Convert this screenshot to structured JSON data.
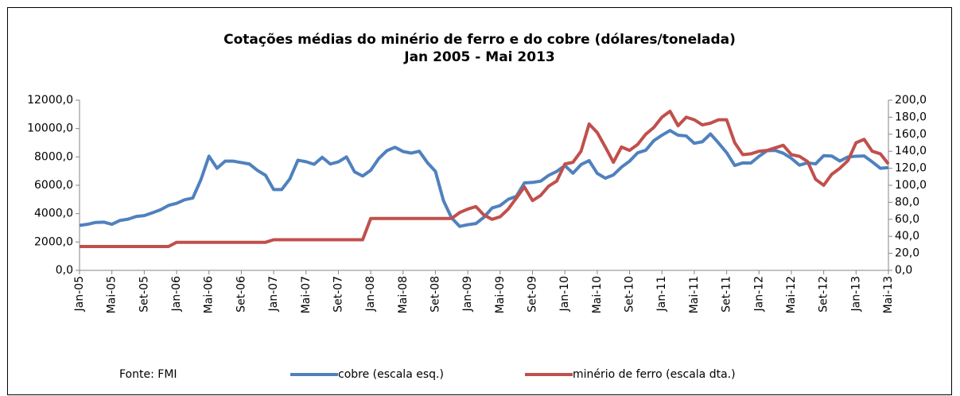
{
  "chart_data": {
    "type": "line",
    "title": "Cotações médias do minério de ferro e do cobre (dólares/tonelada)",
    "subtitle": "Jan 2005 - Mai 2013",
    "source": "Fonte: FMI",
    "categories": [
      "Jan-05",
      null,
      null,
      null,
      "Mai-05",
      null,
      null,
      null,
      "Set-05",
      null,
      null,
      null,
      "Jan-06",
      null,
      null,
      null,
      "Mai-06",
      null,
      null,
      null,
      "Set-06",
      null,
      null,
      null,
      "Jan-07",
      null,
      null,
      null,
      "Mai-07",
      null,
      null,
      null,
      "Set-07",
      null,
      null,
      null,
      "Jan-08",
      null,
      null,
      null,
      "Mai-08",
      null,
      null,
      null,
      "Set-08",
      null,
      null,
      null,
      "Jan-09",
      null,
      null,
      null,
      "Mai-09",
      null,
      null,
      null,
      "Set-09",
      null,
      null,
      null,
      "Jan-10",
      null,
      null,
      null,
      "Mai-10",
      null,
      null,
      null,
      "Set-10",
      null,
      null,
      null,
      "Jan-11",
      null,
      null,
      null,
      "Mai-11",
      null,
      null,
      null,
      "Set-11",
      null,
      null,
      null,
      "Jan-12",
      null,
      null,
      null,
      "Mai-12",
      null,
      null,
      null,
      "Set-12",
      null,
      null,
      null,
      "Jan-13",
      null,
      null,
      null,
      "Mai-13"
    ],
    "series": [
      {
        "name": "cobre (escala esq.)",
        "color": "#4f81bd",
        "values": [
          3170,
          3250,
          3380,
          3400,
          3250,
          3520,
          3610,
          3800,
          3860,
          4060,
          4270,
          4580,
          4730,
          4980,
          5100,
          6390,
          8050,
          7200,
          7700,
          7700,
          7600,
          7500,
          7050,
          6700,
          5700,
          5700,
          6450,
          7770,
          7660,
          7480,
          7970,
          7500,
          7650,
          8000,
          6950,
          6650,
          7060,
          7890,
          8440,
          8680,
          8380,
          8270,
          8400,
          7600,
          6980,
          4900,
          3700,
          3100,
          3220,
          3300,
          3750,
          4400,
          4570,
          5010,
          5220,
          6170,
          6200,
          6290,
          6700,
          6980,
          7390,
          6850,
          7460,
          7740,
          6840,
          6500,
          6730,
          7280,
          7700,
          8290,
          8470,
          9150,
          9530,
          9860,
          9530,
          9480,
          8960,
          9070,
          9620,
          8980,
          8300,
          7400,
          7580,
          7570,
          8040,
          8440,
          8460,
          8260,
          7900,
          7420,
          7580,
          7510,
          8090,
          8060,
          7710,
          8000,
          8050,
          8070,
          7650,
          7200,
          7250
        ]
      },
      {
        "name": "minério de ferro (escala dta.)",
        "color": "#c0504d",
        "axis": "y2",
        "values": [
          28,
          28,
          28,
          28,
          28,
          28,
          28,
          28,
          28,
          28,
          28,
          28,
          33,
          33,
          33,
          33,
          33,
          33,
          33,
          33,
          33,
          33,
          33,
          33,
          36,
          36,
          36,
          36,
          36,
          36,
          36,
          36,
          36,
          36,
          36,
          36,
          61,
          61,
          61,
          61,
          61,
          61,
          61,
          61,
          61,
          61,
          61,
          68,
          72,
          75,
          65,
          60,
          63,
          72,
          85,
          98,
          82,
          88,
          99,
          105,
          125,
          127,
          140,
          172,
          162,
          145,
          127,
          145,
          141,
          148,
          160,
          168,
          180,
          187,
          170,
          180,
          177,
          171,
          173,
          177,
          177,
          150,
          136,
          137,
          140,
          141,
          144,
          147,
          136,
          134,
          128,
          107,
          100,
          113,
          120,
          129,
          150,
          154,
          140,
          137,
          125
        ]
      }
    ],
    "ylim": [
      0,
      12000
    ],
    "yticks": [
      {
        "value": 0,
        "label": "0,0"
      },
      {
        "value": 2000,
        "label": "2000,0"
      },
      {
        "value": 4000,
        "label": "4000,0"
      },
      {
        "value": 6000,
        "label": "6000,0"
      },
      {
        "value": 8000,
        "label": "8000,0"
      },
      {
        "value": 10000,
        "label": "10000,0"
      },
      {
        "value": 12000,
        "label": "12000,0"
      }
    ],
    "y2lim": [
      0,
      200
    ],
    "y2ticks": [
      {
        "value": 0,
        "label": "0,0"
      },
      {
        "value": 20,
        "label": "20,0"
      },
      {
        "value": 40,
        "label": "40,0"
      },
      {
        "value": 60,
        "label": "60,0"
      },
      {
        "value": 80,
        "label": "80,0"
      },
      {
        "value": 100,
        "label": "100,0"
      },
      {
        "value": 120,
        "label": "120,0"
      },
      {
        "value": 140,
        "label": "140,0"
      },
      {
        "value": 160,
        "label": "160,0"
      },
      {
        "value": 180,
        "label": "180,0"
      },
      {
        "value": 200,
        "label": "200,0"
      }
    ],
    "grid": false
  }
}
